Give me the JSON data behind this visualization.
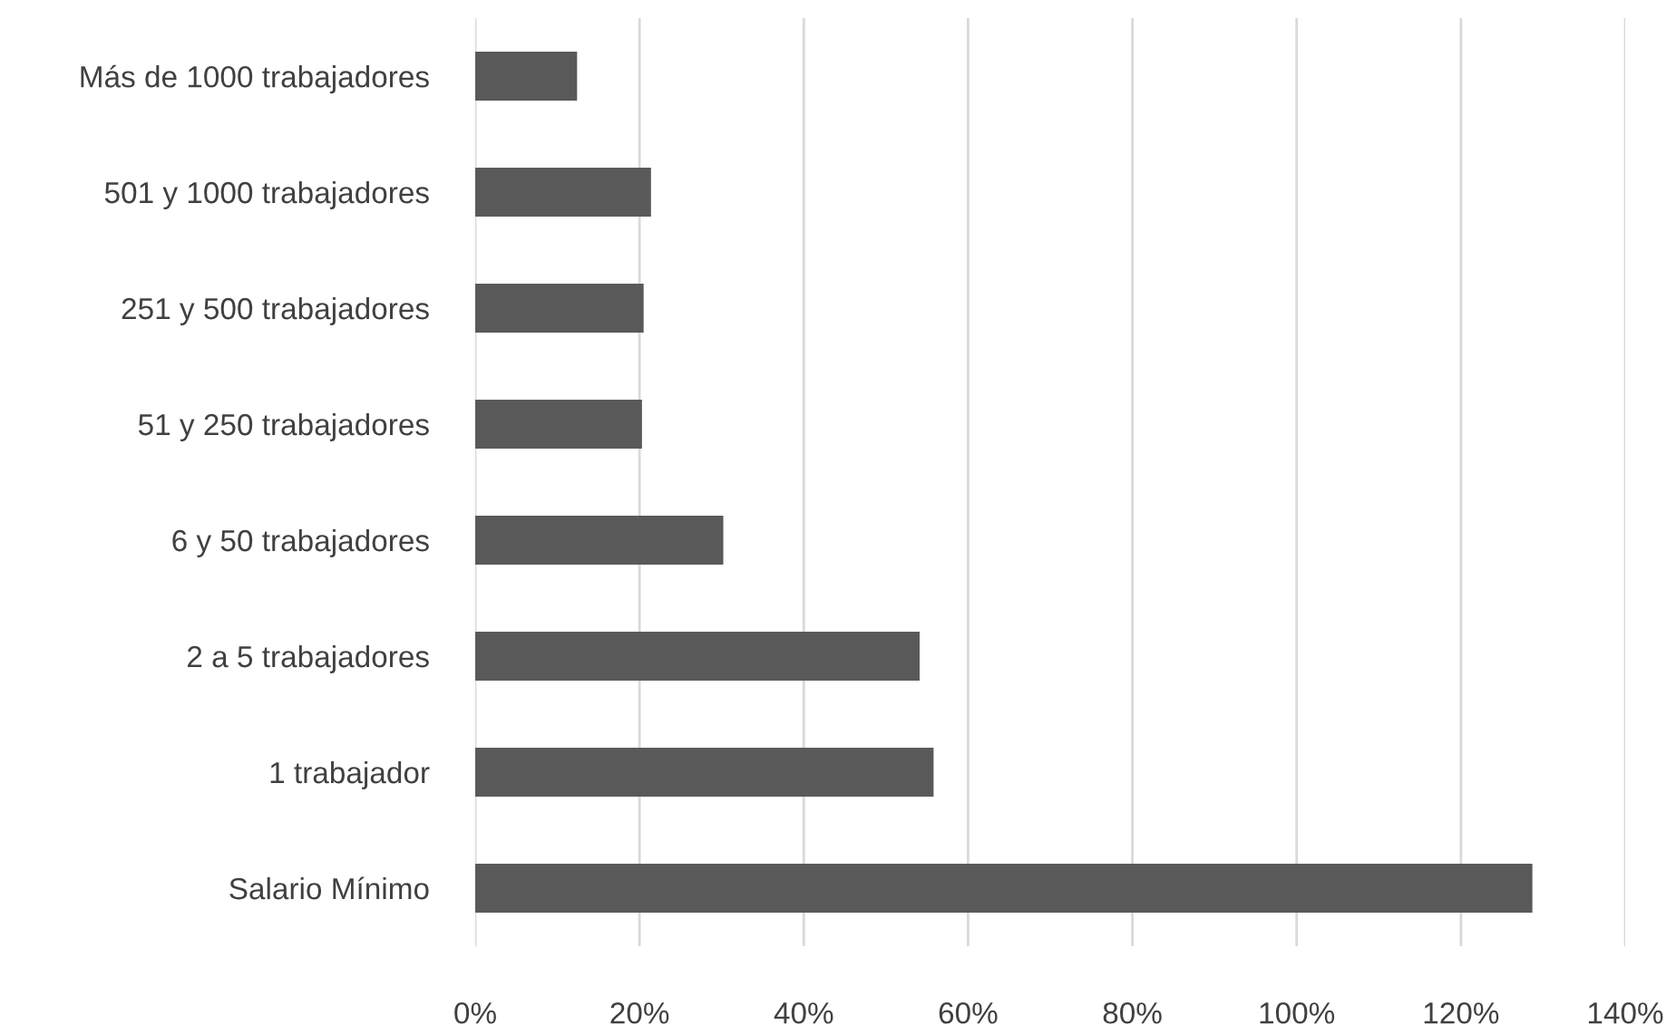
{
  "chart_data": {
    "type": "bar",
    "orientation": "horizontal",
    "categories": [
      "Más de 1000 trabajadores",
      "501 y 1000 trabajadores",
      "251 y 500 trabajadores",
      "51 y 250 trabajadores",
      "6 y 50 trabajadores",
      "2 a 5 trabajadores",
      "1 trabajador",
      "Salario Mínimo"
    ],
    "values": [
      12.4,
      21.4,
      20.5,
      20.3,
      30.2,
      54.1,
      55.8,
      128.7
    ],
    "color": "#595959",
    "xlim": [
      0,
      140
    ],
    "xticks": [
      {
        "value": 0,
        "label": "0%"
      },
      {
        "value": 20,
        "label": "20%"
      },
      {
        "value": 40,
        "label": "40%"
      },
      {
        "value": 60,
        "label": "60%"
      },
      {
        "value": 80,
        "label": "80%"
      },
      {
        "value": 100,
        "label": "100%"
      },
      {
        "value": 120,
        "label": "120%"
      },
      {
        "value": 140,
        "label": "140%"
      }
    ],
    "grid": "x"
  }
}
